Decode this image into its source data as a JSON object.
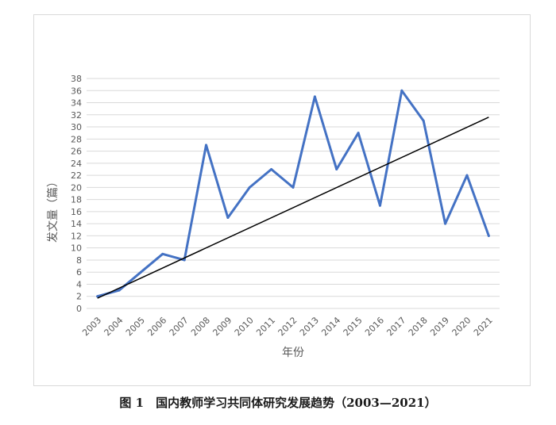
{
  "figure": {
    "caption": "图 1　国内教师学习共同体研究发展趋势（2003—2021）"
  },
  "chart_data": {
    "type": "line",
    "title": "",
    "xlabel": "年份",
    "ylabel": "发文量（篇）",
    "categories": [
      "2003",
      "2004",
      "2005",
      "2006",
      "2007",
      "2008",
      "2009",
      "2010",
      "2011",
      "2012",
      "2013",
      "2014",
      "2015",
      "2016",
      "2017",
      "2018",
      "2019",
      "2020",
      "2021"
    ],
    "series": [
      {
        "values": [
          2,
          3,
          6,
          9,
          8,
          27,
          15,
          20,
          23,
          20,
          35,
          23,
          29,
          17,
          36,
          31,
          14,
          22,
          12
        ],
        "color": "#4472c4"
      }
    ],
    "trendline": {
      "type": "linear",
      "start_value": 1.7,
      "end_value": 31.6,
      "color": "#000000"
    },
    "ylim": [
      0,
      38
    ],
    "yticks": [
      0,
      2,
      4,
      6,
      8,
      10,
      12,
      14,
      16,
      18,
      20,
      22,
      24,
      26,
      28,
      30,
      32,
      34,
      36,
      38
    ],
    "grid": true,
    "legend": "none"
  }
}
